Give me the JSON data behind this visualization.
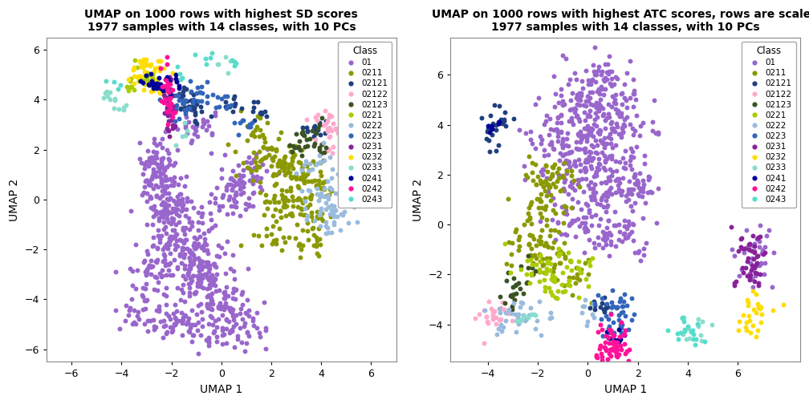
{
  "title1": "UMAP on 1000 rows with highest SD scores\n1977 samples with 14 classes, with 10 PCs",
  "title2": "UMAP on 1000 rows with highest ATC scores, rows are scaled\n1977 samples with 14 classes, with 10 PCs",
  "xlabel": "UMAP 1",
  "ylabel": "UMAP 2",
  "classes": [
    "01",
    "0211",
    "02121",
    "02122",
    "02123",
    "0221",
    "0222",
    "0223",
    "0231",
    "0232",
    "0233",
    "0241",
    "0242",
    "0243"
  ],
  "colors": {
    "01": "#9966CC",
    "0211": "#8B9900",
    "02121": "#1F3F7F",
    "02122": "#FFAACC",
    "02123": "#3B5323",
    "0221": "#AACC00",
    "0222": "#99BBDD",
    "0223": "#3366BB",
    "0231": "#882299",
    "0232": "#FFDD00",
    "0233": "#88DDCC",
    "0241": "#000099",
    "0242": "#FF1199",
    "0243": "#55DDCC"
  },
  "xlim1": [
    -7,
    7
  ],
  "ylim1": [
    -6.5,
    6.5
  ],
  "xticks1": [
    -6,
    -4,
    -2,
    0,
    2,
    4,
    6
  ],
  "yticks1": [
    -6,
    -4,
    -2,
    0,
    2,
    4,
    6
  ],
  "xlim2": [
    -5.5,
    8.5
  ],
  "ylim2": [
    -5.5,
    7.5
  ],
  "xticks2": [
    -4,
    -2,
    0,
    2,
    4,
    6
  ],
  "yticks2": [
    -4,
    -2,
    0,
    2,
    4,
    6
  ],
  "point_size": 18,
  "seed": 42
}
